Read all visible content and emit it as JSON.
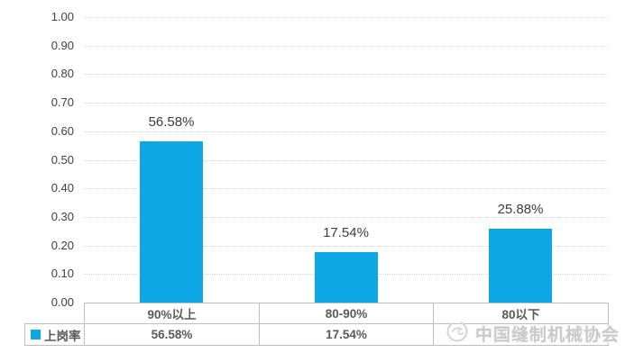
{
  "chart_data": {
    "type": "bar",
    "title": "",
    "categories": [
      "90%以上",
      "80-90%",
      "80以下"
    ],
    "series": [
      {
        "name": "上岗率",
        "values": [
          0.5658,
          0.1754,
          0.2588
        ]
      }
    ],
    "data_labels": [
      "56.58%",
      "17.54%",
      "25.88%"
    ],
    "y_ticks": [
      "0.00",
      "0.10",
      "0.20",
      "0.30",
      "0.40",
      "0.50",
      "0.60",
      "0.70",
      "0.80",
      "0.90",
      "1.00"
    ],
    "ylim": [
      0,
      1.0
    ],
    "grid": true,
    "legend_position": "bottom-table",
    "table": {
      "legend_label": "上岗率",
      "category_row": [
        "90%以上",
        "80-90%",
        "80以下"
      ],
      "value_row": [
        "56.58%",
        "17.54%",
        ""
      ]
    }
  },
  "legend": {
    "label": "上岗率"
  },
  "watermark": {
    "text": "中国缝制机械协会",
    "icon": "association-logo"
  },
  "colors": {
    "bar": "#0da7e5",
    "axis_text": "#404040",
    "grid": "#d8d8d8",
    "table_border": "#bfbfbf",
    "table_text": "#595959",
    "data_label_text": "#3b3b3b",
    "watermark": "#c9c9c9"
  }
}
